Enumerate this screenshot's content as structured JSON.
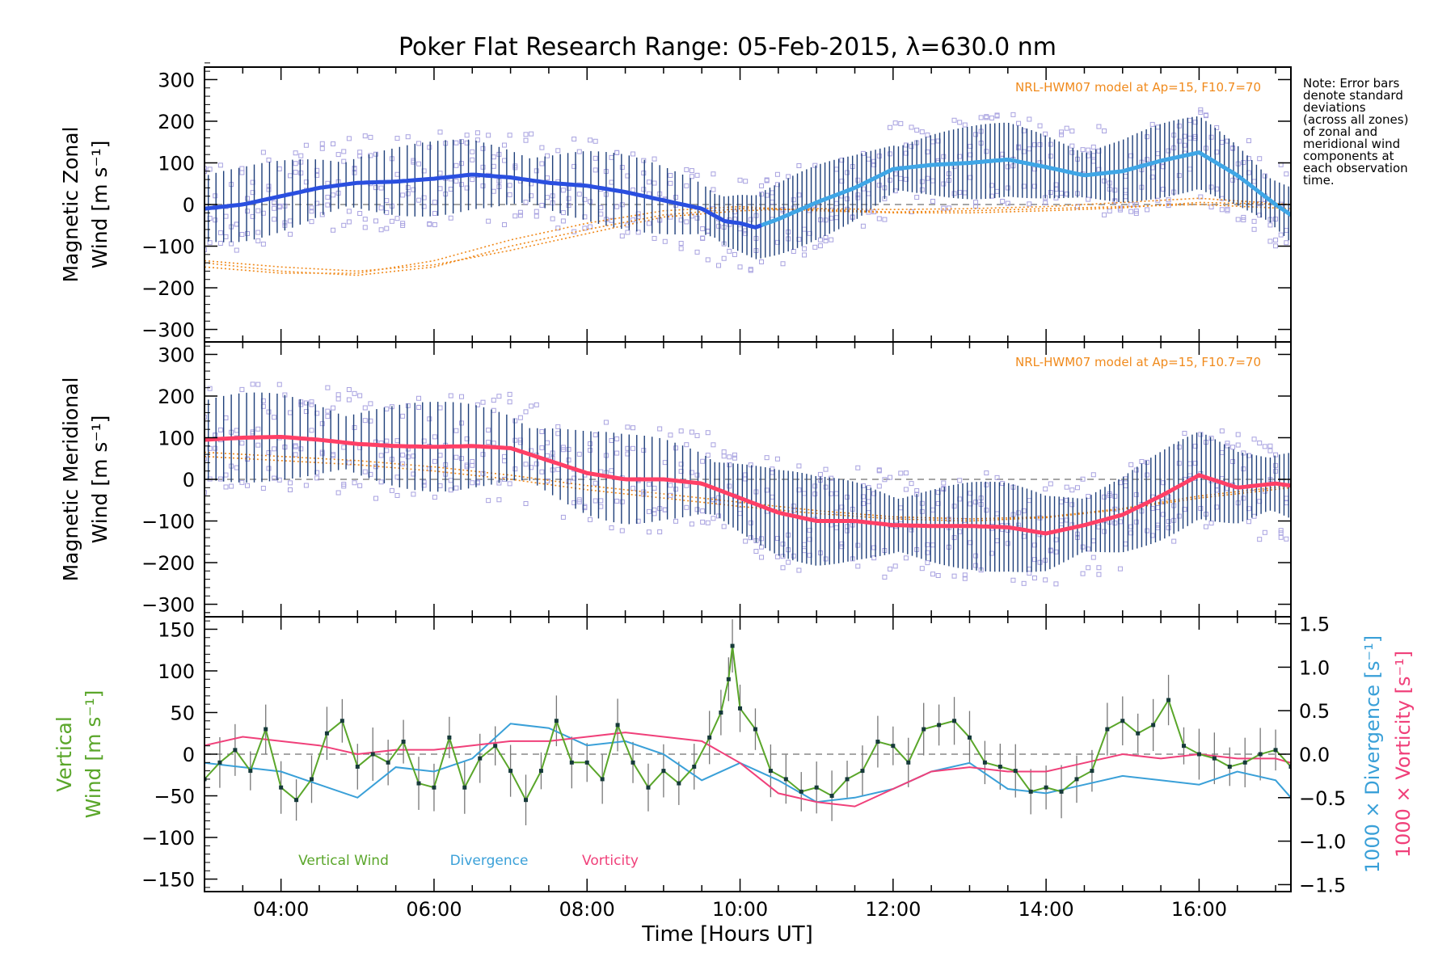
{
  "title": "Poker Flat Research Range: 05-Feb-2015, λ=630.0 nm",
  "note_lines": [
    "Note: Error bars",
    "denote standard",
    "deviations",
    "(across all zones)",
    "of zonal and",
    "meridional wind",
    "components at",
    "each observation",
    "time."
  ],
  "model_label": "NRL-HWM07 model at Ap=15, F10.7=70",
  "colors": {
    "zonal_mean": "#2a4fe0",
    "zonal_mean_late": "#3fa6e6",
    "meridional_mean": "#ff3f66",
    "error_bar": "#1e3f7a",
    "scatter": "#a8a2e0",
    "model": "#f08a1c",
    "vertical": "#5aa62a",
    "divergence": "#3aa0d8",
    "vorticity": "#f0407a",
    "vertical_point": "#163a3a"
  },
  "chart_data": [
    {
      "type": "line",
      "panel": "zonal",
      "ylabel_lines": [
        "Magnetic Zonal",
        "Wind [m s⁻¹]"
      ],
      "ylim": [
        -330,
        330
      ],
      "yticks": [
        -300,
        -200,
        -100,
        0,
        100,
        200,
        300
      ],
      "xlim_hours": [
        3.0,
        17.2
      ],
      "mean_series": {
        "name": "Mean zonal wind",
        "x": [
          3.0,
          3.5,
          4.0,
          4.5,
          5.0,
          5.5,
          6.0,
          6.5,
          7.0,
          7.5,
          8.0,
          8.5,
          9.0,
          9.5,
          9.8,
          10.0,
          10.2,
          10.5,
          11.0,
          11.5,
          12.0,
          12.5,
          13.0,
          13.5,
          14.0,
          14.5,
          15.0,
          15.5,
          16.0,
          16.5,
          17.0,
          17.2
        ],
        "y": [
          -10,
          0,
          20,
          40,
          52,
          55,
          62,
          72,
          65,
          52,
          45,
          30,
          10,
          -10,
          -40,
          -45,
          -55,
          -35,
          5,
          40,
          85,
          95,
          100,
          108,
          90,
          70,
          80,
          105,
          125,
          70,
          0,
          -25
        ],
        "error": 75
      },
      "model_curves": [
        {
          "x": [
            3.0,
            4.0,
            5.0,
            6.0,
            7.0,
            8.0,
            9.0,
            10.0,
            11.0,
            12.0,
            13.0,
            14.0,
            15.0,
            16.0,
            17.2
          ],
          "y": [
            -140,
            -160,
            -170,
            -150,
            -100,
            -60,
            -25,
            -10,
            -12,
            -18,
            -15,
            -10,
            -5,
            0,
            -10
          ]
        },
        {
          "x": [
            3.0,
            4.0,
            5.0,
            6.0,
            7.0,
            8.0,
            9.0,
            10.0,
            11.0,
            12.0,
            13.0,
            14.0,
            15.0,
            16.0,
            17.2
          ],
          "y": [
            -150,
            -165,
            -165,
            -135,
            -85,
            -45,
            -15,
            -5,
            -15,
            -20,
            -20,
            -15,
            -8,
            5,
            0
          ]
        },
        {
          "x": [
            3.0,
            4.0,
            5.0,
            6.0,
            7.0,
            8.0,
            9.0,
            10.0,
            11.0,
            12.0,
            13.0,
            14.0,
            15.0,
            16.0,
            17.2
          ],
          "y": [
            -135,
            -150,
            -160,
            -145,
            -110,
            -70,
            -30,
            -15,
            -10,
            -12,
            -10,
            -5,
            5,
            15,
            0
          ]
        }
      ]
    },
    {
      "type": "line",
      "panel": "meridional",
      "ylabel_lines": [
        "Magnetic Meridional",
        "Wind [m s⁻¹]"
      ],
      "ylim": [
        -330,
        330
      ],
      "yticks": [
        -300,
        -200,
        -100,
        0,
        100,
        200,
        300
      ],
      "xlim_hours": [
        3.0,
        17.2
      ],
      "mean_series": {
        "name": "Mean meridional wind",
        "x": [
          3.0,
          3.5,
          4.0,
          4.5,
          5.0,
          5.5,
          6.0,
          6.5,
          7.0,
          7.5,
          8.0,
          8.5,
          9.0,
          9.5,
          10.0,
          10.5,
          11.0,
          11.5,
          12.0,
          12.5,
          13.0,
          13.5,
          14.0,
          14.5,
          15.0,
          15.5,
          16.0,
          16.5,
          17.0,
          17.2
        ],
        "y": [
          95,
          100,
          102,
          95,
          85,
          80,
          78,
          80,
          75,
          45,
          15,
          0,
          0,
          -10,
          -45,
          -80,
          -100,
          -100,
          -110,
          -112,
          -112,
          -115,
          -130,
          -110,
          -85,
          -40,
          10,
          -20,
          -10,
          -15
        ],
        "error": 90
      },
      "model_curves": [
        {
          "x": [
            3.0,
            4.0,
            5.0,
            6.0,
            7.0,
            8.0,
            9.0,
            10.0,
            11.0,
            12.0,
            13.0,
            14.0,
            15.0,
            16.0,
            17.2
          ],
          "y": [
            65,
            55,
            45,
            30,
            10,
            -15,
            -35,
            -55,
            -75,
            -90,
            -95,
            -90,
            -70,
            -40,
            -15
          ]
        },
        {
          "x": [
            3.0,
            4.0,
            5.0,
            6.0,
            7.0,
            8.0,
            9.0,
            10.0,
            11.0,
            12.0,
            13.0,
            14.0,
            15.0,
            16.0,
            17.2
          ],
          "y": [
            55,
            45,
            35,
            20,
            0,
            -25,
            -45,
            -65,
            -82,
            -95,
            -100,
            -92,
            -72,
            -45,
            -20
          ]
        }
      ]
    },
    {
      "type": "line",
      "panel": "vertical",
      "ylabel_left_lines": [
        "Vertical",
        "Wind [m s⁻¹]"
      ],
      "ylabel_right_1": "1000 × Divergence [s⁻¹]",
      "ylabel_right_2": "1000 × Vorticity [s⁻¹]",
      "ylim": [
        -165,
        165
      ],
      "yticks": [
        -150,
        -100,
        -50,
        0,
        50,
        100,
        150
      ],
      "y2lim": [
        -1.58,
        1.58
      ],
      "y2ticks": [
        -1.5,
        -1.0,
        -0.5,
        0.0,
        0.5,
        1.0,
        1.5
      ],
      "y2ticklabels": [
        "−1.5",
        "−1.0",
        "−0.5",
        "0.0",
        "0.5",
        "1.0",
        "1.5"
      ],
      "xlabel": "Time [Hours UT]",
      "xlim_hours": [
        3.0,
        17.2
      ],
      "xticks_hours": [
        4,
        6,
        8,
        10,
        12,
        14,
        16
      ],
      "xticklabels": [
        "04:00",
        "06:00",
        "08:00",
        "10:00",
        "12:00",
        "14:00",
        "16:00"
      ],
      "legend": [
        "Vertical Wind",
        "Divergence",
        "Vorticity"
      ],
      "series": [
        {
          "name": "Vertical Wind",
          "axis": "left",
          "x": [
            3.0,
            3.2,
            3.4,
            3.6,
            3.8,
            4.0,
            4.2,
            4.4,
            4.6,
            4.8,
            5.0,
            5.2,
            5.4,
            5.6,
            5.8,
            6.0,
            6.2,
            6.4,
            6.6,
            6.8,
            7.0,
            7.2,
            7.4,
            7.6,
            7.8,
            8.0,
            8.2,
            8.4,
            8.6,
            8.8,
            9.0,
            9.2,
            9.4,
            9.6,
            9.75,
            9.85,
            9.9,
            10.0,
            10.2,
            10.4,
            10.6,
            10.8,
            11.0,
            11.2,
            11.4,
            11.6,
            11.8,
            12.0,
            12.2,
            12.4,
            12.6,
            12.8,
            13.0,
            13.2,
            13.4,
            13.6,
            13.8,
            14.0,
            14.2,
            14.4,
            14.6,
            14.8,
            15.0,
            15.2,
            15.4,
            15.6,
            15.8,
            16.0,
            16.2,
            16.4,
            16.6,
            16.8,
            17.0,
            17.2
          ],
          "y": [
            -30,
            -10,
            5,
            -20,
            30,
            -40,
            -55,
            -30,
            25,
            40,
            -15,
            0,
            -10,
            15,
            -35,
            -40,
            20,
            -40,
            -5,
            10,
            -20,
            -55,
            -20,
            40,
            -10,
            -10,
            -30,
            35,
            -10,
            -40,
            -20,
            -35,
            -15,
            20,
            50,
            90,
            130,
            55,
            30,
            -20,
            -30,
            -45,
            -40,
            -50,
            -30,
            -20,
            15,
            10,
            -10,
            30,
            35,
            40,
            20,
            -10,
            -15,
            -20,
            -45,
            -40,
            -45,
            -30,
            -20,
            30,
            40,
            25,
            35,
            65,
            10,
            0,
            -5,
            -15,
            -10,
            0,
            5,
            -15
          ]
        },
        {
          "name": "Divergence",
          "axis": "right",
          "x": [
            3.0,
            3.5,
            4.0,
            4.5,
            5.0,
            5.5,
            6.0,
            6.5,
            7.0,
            7.5,
            8.0,
            8.5,
            9.0,
            9.5,
            10.0,
            10.5,
            11.0,
            11.5,
            12.0,
            12.5,
            13.0,
            13.5,
            14.0,
            14.5,
            15.0,
            15.5,
            16.0,
            16.5,
            17.0,
            17.2
          ],
          "y": [
            -0.1,
            -0.15,
            -0.2,
            -0.35,
            -0.5,
            -0.15,
            -0.2,
            -0.05,
            0.35,
            0.3,
            0.1,
            0.15,
            0.0,
            -0.3,
            -0.1,
            -0.3,
            -0.55,
            -0.5,
            -0.4,
            -0.2,
            -0.1,
            -0.4,
            -0.45,
            -0.35,
            -0.25,
            -0.3,
            -0.35,
            -0.2,
            -0.3,
            -0.5
          ]
        },
        {
          "name": "Vorticity",
          "axis": "right",
          "x": [
            3.0,
            3.5,
            4.0,
            4.5,
            5.0,
            5.5,
            6.0,
            6.5,
            7.0,
            7.5,
            8.0,
            8.5,
            9.0,
            9.5,
            10.0,
            10.5,
            11.0,
            11.5,
            12.0,
            12.5,
            13.0,
            13.5,
            14.0,
            14.5,
            15.0,
            15.5,
            16.0,
            16.5,
            17.0,
            17.2
          ],
          "y": [
            0.1,
            0.2,
            0.15,
            0.1,
            0.0,
            0.05,
            0.05,
            0.1,
            0.15,
            0.15,
            0.2,
            0.25,
            0.2,
            0.15,
            -0.1,
            -0.45,
            -0.55,
            -0.6,
            -0.4,
            -0.2,
            -0.15,
            -0.2,
            -0.2,
            -0.1,
            0.0,
            -0.05,
            0.0,
            -0.05,
            -0.05,
            -0.1
          ]
        }
      ]
    }
  ]
}
